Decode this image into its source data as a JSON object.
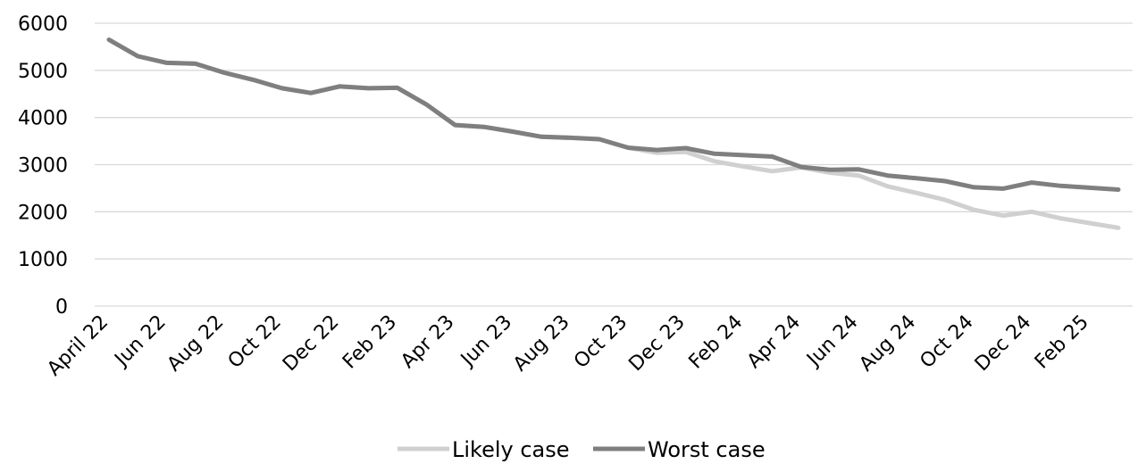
{
  "chart_data": {
    "type": "line",
    "title": "",
    "xlabel": "",
    "ylabel": "",
    "ylim": [
      0,
      6000
    ],
    "yticks": [
      "0",
      "1000",
      "2000",
      "3000",
      "4000",
      "5000",
      "6000"
    ],
    "grid": "horizontal",
    "legend_position": "bottom",
    "x_tick_labels": [
      "April 22",
      "Jun 22",
      "Aug 22",
      "Oct 22",
      "Dec 22",
      "Feb 23",
      "Apr 23",
      "Jun 23",
      "Aug 23",
      "Oct 23",
      "Dec 23",
      "Feb 24",
      "Apr 24",
      "Jun 24",
      "Aug 24",
      "Oct 24",
      "Dec 24",
      "Feb 25"
    ],
    "categories": [
      "April 22",
      "May 22",
      "Jun 22",
      "Jul 22",
      "Aug 22",
      "Sep 22",
      "Oct 22",
      "Nov 22",
      "Dec 22",
      "Jan 23",
      "Feb 23",
      "Mar 23",
      "Apr 23",
      "May 23",
      "Jun 23",
      "Jul 23",
      "Aug 23",
      "Sep 23",
      "Oct 23",
      "Nov 23",
      "Dec 23",
      "Jan 24",
      "Feb 24",
      "Mar 24",
      "Apr 24",
      "May 24",
      "Jun 24",
      "Jul 24",
      "Aug 24",
      "Sep 24",
      "Oct 24",
      "Nov 24",
      "Dec 24",
      "Jan 25",
      "Feb 25",
      "Mar 25"
    ],
    "series": [
      {
        "name": "Likely case",
        "color": "#d0d0d0",
        "values": [
          5650,
          5300,
          5160,
          5140,
          4950,
          4800,
          4620,
          4520,
          4660,
          4620,
          4630,
          4280,
          3840,
          3800,
          3700,
          3590,
          3570,
          3540,
          3360,
          3250,
          3270,
          3070,
          2960,
          2860,
          2940,
          2830,
          2770,
          2540,
          2400,
          2250,
          2040,
          1920,
          2000,
          1860,
          1760,
          1660
        ]
      },
      {
        "name": "Worst case",
        "color": "#7f7f7f",
        "values": [
          5650,
          5300,
          5160,
          5140,
          4950,
          4800,
          4620,
          4520,
          4660,
          4620,
          4630,
          4280,
          3840,
          3800,
          3700,
          3590,
          3570,
          3540,
          3360,
          3310,
          3350,
          3230,
          3200,
          3170,
          2950,
          2890,
          2900,
          2770,
          2710,
          2650,
          2520,
          2490,
          2620,
          2550,
          2510,
          2470
        ]
      }
    ]
  }
}
